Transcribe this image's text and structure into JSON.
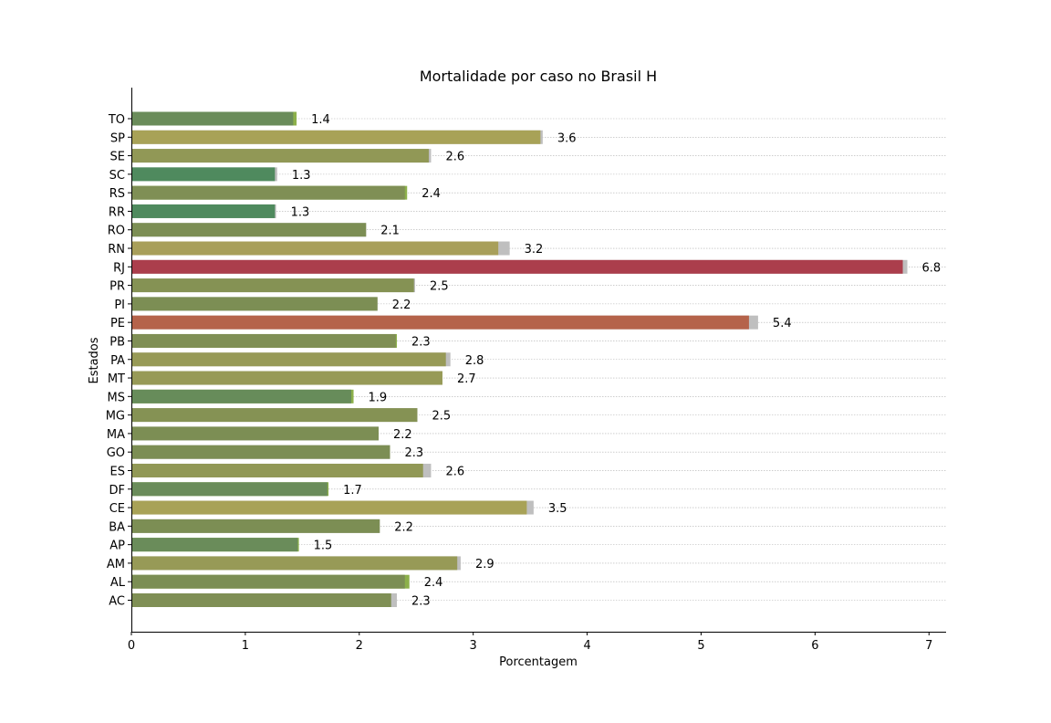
{
  "chart_data": {
    "type": "bar",
    "orientation": "horizontal",
    "title": "Mortalidade por caso no Brasil H",
    "xlabel": "Porcentagem",
    "ylabel": "Estados",
    "xlim": [
      0,
      7.15
    ],
    "xticks": [
      0,
      1,
      2,
      3,
      4,
      5,
      6,
      7
    ],
    "grid": "horizontal dotted",
    "categories": [
      "AC",
      "AL",
      "AM",
      "AP",
      "BA",
      "CE",
      "DF",
      "ES",
      "GO",
      "MA",
      "MG",
      "MS",
      "MT",
      "PA",
      "PB",
      "PE",
      "PI",
      "PR",
      "RJ",
      "RN",
      "RO",
      "RR",
      "RS",
      "SC",
      "SE",
      "SP",
      "TO"
    ],
    "series": [
      {
        "values": [
          2.28,
          2.4,
          2.86,
          1.46,
          2.18,
          3.47,
          1.72,
          2.56,
          2.27,
          2.17,
          2.51,
          1.93,
          2.73,
          2.76,
          2.32,
          5.42,
          2.16,
          2.48,
          6.77,
          3.22,
          2.06,
          1.26,
          2.4,
          1.26,
          2.61,
          3.59,
          1.42
        ],
        "colors": [
          "#7f8f55",
          "#7b8e54",
          "#979a57",
          "#6a8c5a",
          "#7c8e54",
          "#a8a257",
          "#6a8c5a",
          "#919856",
          "#7c8e54",
          "#7c8e54",
          "#859254",
          "#678c5a",
          "#979a57",
          "#979a57",
          "#7f8f55",
          "#b5634a",
          "#7c8e54",
          "#859254",
          "#ab3e4c",
          "#a89f5a",
          "#7c8e54",
          "#4f8a5e",
          "#7f8f55",
          "#4f8a5e",
          "#919856",
          "#a8a257",
          "#6a8c5a"
        ]
      },
      {
        "values": [
          2.33,
          2.44,
          2.89,
          1.47,
          2.18,
          3.53,
          1.73,
          2.63,
          2.27,
          2.17,
          2.51,
          1.95,
          2.73,
          2.8,
          2.33,
          5.5,
          2.16,
          2.49,
          6.81,
          3.32,
          2.06,
          1.27,
          2.42,
          1.28,
          2.63,
          3.61,
          1.45
        ],
        "colors": [
          "#bfbfbf",
          "#8cb04a",
          "#bfbfbf",
          "#8cb04a",
          "#bfbfbf",
          "#bfbfbf",
          "#8cb04a",
          "#bfbfbf",
          "#bfbfbf",
          "#bfbfbf",
          "#bfbfbf",
          "#8cb04a",
          "#bfbfbf",
          "#bfbfbf",
          "#8cb04a",
          "#bfbfbf",
          "#bfbfbf",
          "#bfbfbf",
          "#bfbfbf",
          "#bfbfbf",
          "#bfbfbf",
          "#bfbfbf",
          "#8cb04a",
          "#bfbfbf",
          "#bfbfbf",
          "#bfbfbf",
          "#8cb04a"
        ]
      }
    ],
    "data_labels": [
      "2.3",
      "2.4",
      "2.9",
      "1.5",
      "2.2",
      "3.5",
      "1.7",
      "2.6",
      "2.3",
      "2.2",
      "2.5",
      "1.9",
      "2.7",
      "2.8",
      "2.3",
      "5.4",
      "2.2",
      "2.5",
      "6.8",
      "3.2",
      "2.1",
      "1.3",
      "2.4",
      "1.3",
      "2.6",
      "3.6",
      "1.4"
    ]
  }
}
